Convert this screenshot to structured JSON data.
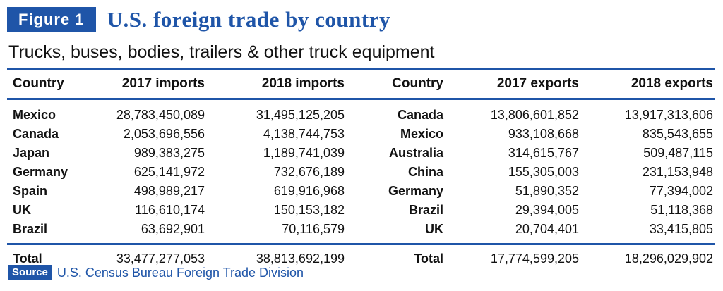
{
  "figure_label": "Figure 1",
  "title": "U.S. foreign trade by country",
  "subtitle": "Trucks, buses, bodies, trailers & other truck equipment",
  "source_label": "Source",
  "source_text": "U.S. Census Bureau Foreign Trade Division",
  "colors": {
    "accent": "#1f55a8"
  },
  "chart_data": {
    "type": "table",
    "columns": [
      "Country",
      "2017 imports",
      "2018 imports",
      "Country",
      "2017 exports",
      "2018 exports"
    ],
    "rows": [
      [
        "Mexico",
        "28,783,450,089",
        "31,495,125,205",
        "Canada",
        "13,806,601,852",
        "13,917,313,606"
      ],
      [
        "Canada",
        "2,053,696,556",
        "4,138,744,753",
        "Mexico",
        "933,108,668",
        "835,543,655"
      ],
      [
        "Japan",
        "989,383,275",
        "1,189,741,039",
        "Australia",
        "314,615,767",
        "509,487,115"
      ],
      [
        "Germany",
        "625,141,972",
        "732,676,189",
        "China",
        "155,305,003",
        "231,153,948"
      ],
      [
        "Spain",
        "498,989,217",
        "619,916,968",
        "Germany",
        "51,890,352",
        "77,394,002"
      ],
      [
        "UK",
        "116,610,174",
        "150,153,182",
        "Brazil",
        "29,394,005",
        "51,118,368"
      ],
      [
        "Brazil",
        "63,692,901",
        "70,116,579",
        "UK",
        "20,704,401",
        "33,415,805"
      ]
    ],
    "total": [
      "Total",
      "33,477,277,053",
      "38,813,692,199",
      "Total",
      "17,774,599,205",
      "18,296,029,902"
    ]
  }
}
